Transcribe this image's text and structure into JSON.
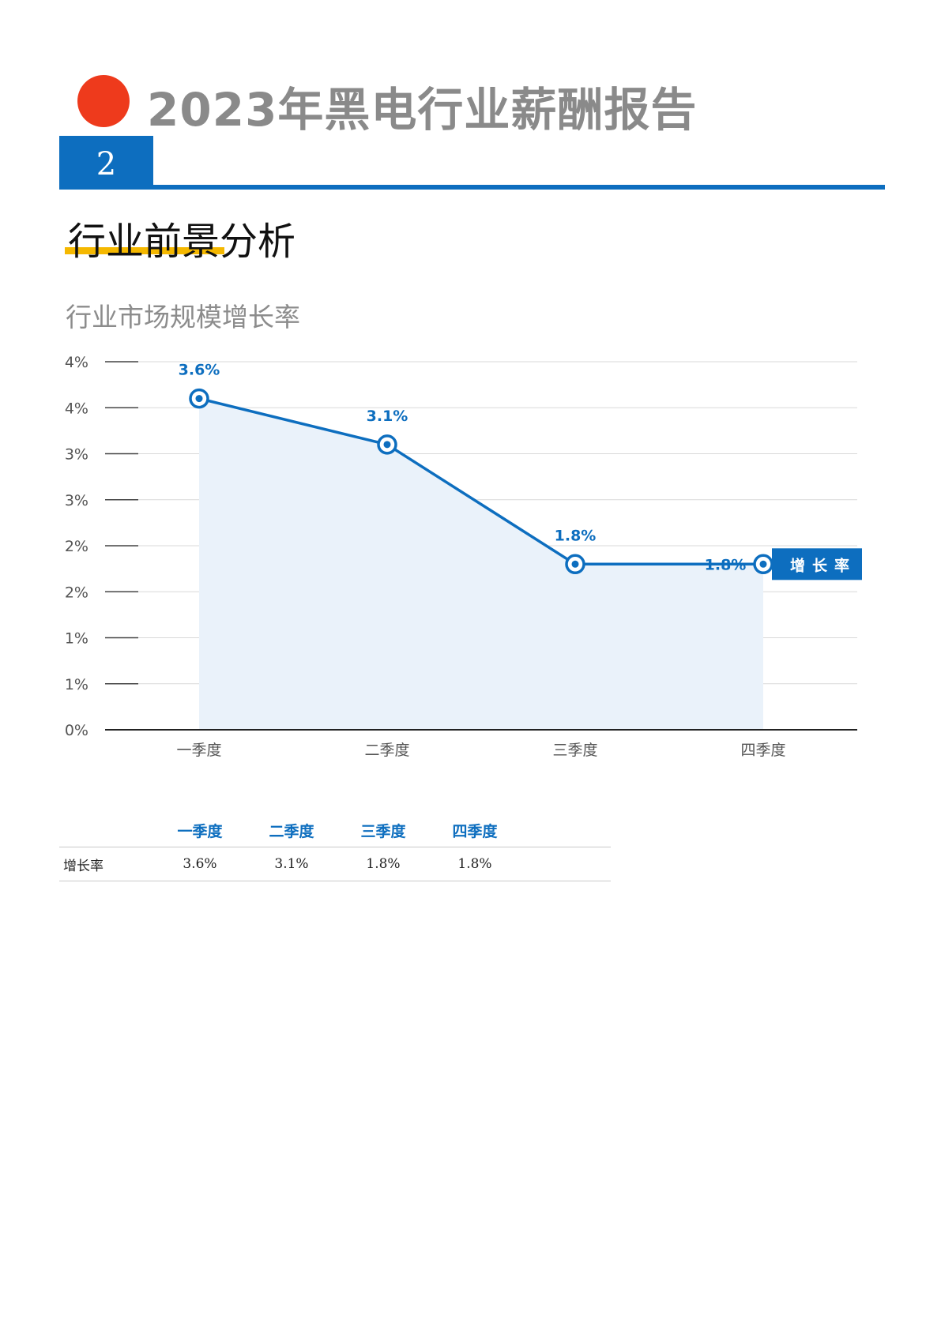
{
  "header": {
    "report_title": "2023年黑电行业薪酬报告",
    "section_number": "2",
    "section_title": "行业前景分析",
    "accent_dot_color": "#ee3a1c",
    "accent_blue": "#0d6ebf",
    "underline_color": "#f5b800"
  },
  "chart_data": {
    "type": "area",
    "title": "行业市场规模增长率",
    "categories": [
      "一季度",
      "二季度",
      "三季度",
      "四季度"
    ],
    "series": [
      {
        "name": "增长率",
        "values": [
          3.6,
          3.1,
          1.8,
          1.8
        ],
        "labels": [
          "3.6%",
          "3.1%",
          "1.8%",
          "1.8%"
        ]
      }
    ],
    "y_ticks": [
      0,
      0.5,
      1,
      1.5,
      2,
      2.5,
      3,
      3.5,
      4
    ],
    "y_tick_labels": [
      "0%",
      "1%",
      "1%",
      "2%",
      "2%",
      "3%",
      "3%",
      "4%",
      "4%"
    ],
    "ylim": [
      0,
      4
    ],
    "grid": true,
    "legend_position": "right",
    "line_color": "#0d6ebf",
    "fill_color": "#eaf2fa"
  },
  "table": {
    "columns": [
      "一季度",
      "二季度",
      "三季度",
      "四季度"
    ],
    "row_label": "增长率",
    "values": [
      "3.6%",
      "3.1%",
      "1.8%",
      "1.8%"
    ]
  }
}
